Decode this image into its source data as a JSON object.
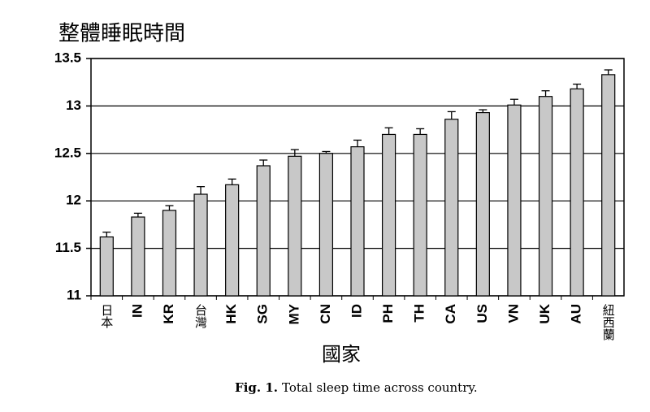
{
  "chart_data": {
    "type": "bar",
    "title": "整體睡眠時間",
    "x_label": "國家",
    "caption_label": "Fig. 1.",
    "caption": "Total sleep time across country.",
    "categories": [
      "日本",
      "IN",
      "KR",
      "台灣",
      "HK",
      "SG",
      "MY",
      "CN",
      "ID",
      "PH",
      "TH",
      "CA",
      "US",
      "VN",
      "UK",
      "AU",
      "紐西蘭"
    ],
    "values": [
      11.62,
      11.83,
      11.9,
      12.07,
      12.17,
      12.37,
      12.47,
      12.5,
      12.57,
      12.7,
      12.7,
      12.86,
      12.93,
      13.01,
      13.1,
      13.18,
      13.33
    ],
    "errors": [
      0.05,
      0.04,
      0.05,
      0.08,
      0.06,
      0.06,
      0.07,
      0.02,
      0.07,
      0.07,
      0.06,
      0.08,
      0.03,
      0.06,
      0.06,
      0.05,
      0.05
    ],
    "color": "#c8c8c8",
    "ylim": [
      11,
      13.5
    ],
    "yticks": [
      11,
      11.5,
      12,
      12.5,
      13,
      13.5
    ],
    "grid": true
  }
}
